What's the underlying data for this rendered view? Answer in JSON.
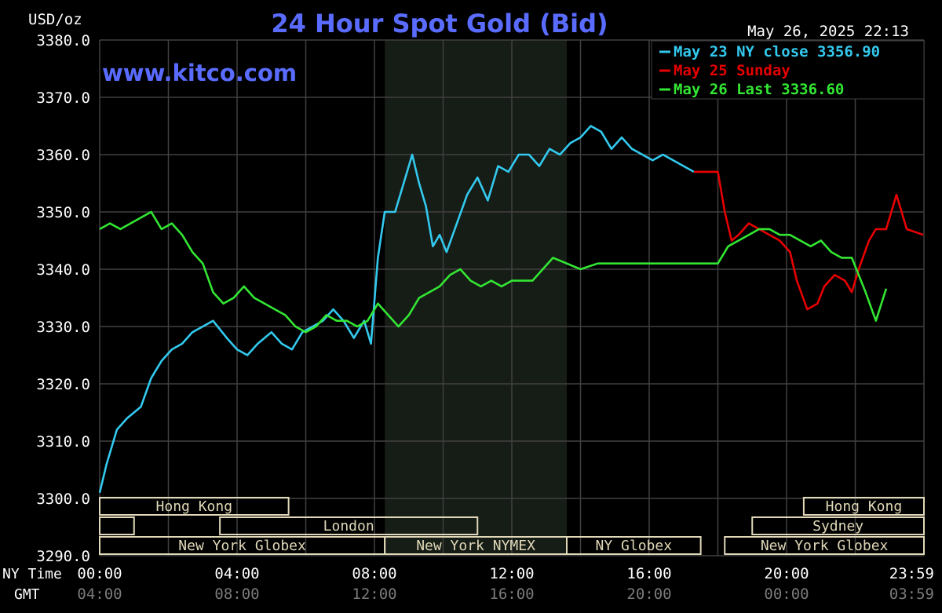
{
  "header": {
    "title": "24 Hour Spot Gold (Bid)",
    "unit_label": "USD/oz",
    "timestamp": "May 26, 2025 22:13",
    "watermark": "www.kitco.com"
  },
  "colors": {
    "background": "#000000",
    "grid": "#404040",
    "title": "#5a6cff",
    "text": "#ffffff",
    "axis_gray": "#7a7a7a",
    "market_shading": "#161c16",
    "session_fill": "#e0d8b8",
    "session_text": "#000000",
    "series_cyan": "#33c9ee",
    "series_red": "#e60000",
    "series_green": "#33e633"
  },
  "legend": {
    "placement": "top-right",
    "items": [
      {
        "label": "May 23 NY close 3356.90",
        "color": "#33c9ee"
      },
      {
        "label": "May 25 Sunday",
        "color": "#e60000"
      },
      {
        "label": "May 26 Last 3336.60",
        "color": "#33e633"
      }
    ]
  },
  "axes": {
    "x_row1_label": "NY Time",
    "x_row2_label": "GMT",
    "x_ny": [
      "00:00",
      "04:00",
      "08:00",
      "12:00",
      "16:00",
      "20:00",
      "23:59"
    ],
    "x_gmt": [
      "04:00",
      "08:00",
      "12:00",
      "16:00",
      "20:00",
      "00:00",
      "03:59"
    ],
    "y_ticks": [
      "3380.0",
      "3370.0",
      "3360.0",
      "3350.0",
      "3340.0",
      "3330.0",
      "3320.0",
      "3310.0",
      "3300.0",
      "3290.0"
    ]
  },
  "sessions": [
    {
      "label": "Hong Kong",
      "start": 0,
      "end": 5.5,
      "row": 0
    },
    {
      "label": "Hong Kong",
      "start": 20.5,
      "end": 24,
      "row": 0
    },
    {
      "label": "",
      "start": 0,
      "end": 1,
      "row": 1
    },
    {
      "label": "London",
      "start": 3.5,
      "end": 11,
      "row": 1
    },
    {
      "label": "Sydney",
      "start": 19,
      "end": 24,
      "row": 1
    },
    {
      "label": "New York Globex",
      "start": 0,
      "end": 8.3,
      "row": 2
    },
    {
      "label": "New York NYMEX",
      "start": 8.3,
      "end": 13.6,
      "row": 2
    },
    {
      "label": "NY Globex",
      "start": 13.6,
      "end": 17.5,
      "row": 2
    },
    {
      "label": "New York Globex",
      "start": 18.2,
      "end": 24,
      "row": 2
    }
  ],
  "chart_data": {
    "type": "line",
    "title": "24 Hour Spot Gold (Bid)",
    "ylabel": "USD/oz",
    "xlabel": "NY Time",
    "xlim": [
      0,
      24
    ],
    "ylim": [
      3290,
      3380
    ],
    "grid": true,
    "shaded_region": [
      8.3,
      13.6
    ],
    "series": [
      {
        "name": "May 23 NY close 3356.90",
        "color": "#33c9ee",
        "x": [
          0,
          0.2,
          0.5,
          0.8,
          1.2,
          1.5,
          1.8,
          2.1,
          2.4,
          2.7,
          3.0,
          3.3,
          3.7,
          4.0,
          4.3,
          4.6,
          5.0,
          5.3,
          5.6,
          5.9,
          6.2,
          6.5,
          6.8,
          7.1,
          7.4,
          7.7,
          7.9,
          8.1,
          8.3,
          8.6,
          8.9,
          9.1,
          9.3,
          9.5,
          9.7,
          9.9,
          10.1,
          10.4,
          10.7,
          11.0,
          11.3,
          11.6,
          11.9,
          12.2,
          12.5,
          12.8,
          13.1,
          13.4,
          13.7,
          14.0,
          14.3,
          14.6,
          14.9,
          15.2,
          15.5,
          15.8,
          16.1,
          16.4,
          16.7,
          17.0,
          17.3
        ],
        "y": [
          3301,
          3306,
          3312,
          3314,
          3316,
          3321,
          3324,
          3326,
          3327,
          3329,
          3330,
          3331,
          3328,
          3326,
          3325,
          3327,
          3329,
          3327,
          3326,
          3329,
          3330,
          3331,
          3333,
          3331,
          3328,
          3331,
          3327,
          3342,
          3350,
          3350,
          3356,
          3360,
          3355,
          3351,
          3344,
          3346,
          3343,
          3348,
          3353,
          3356,
          3352,
          3358,
          3357,
          3360,
          3360,
          3358,
          3361,
          3360,
          3362,
          3363,
          3365,
          3364,
          3361,
          3363,
          3361,
          3360,
          3359,
          3360,
          3359,
          3358,
          3357
        ]
      },
      {
        "name": "May 25 Sunday",
        "color": "#e60000",
        "x": [
          17.3,
          17.7,
          18.0,
          18.2,
          18.4,
          18.6,
          18.9,
          19.2,
          19.5,
          19.8,
          20.1,
          20.3,
          20.6,
          20.9,
          21.1,
          21.4,
          21.7,
          21.9,
          22.1,
          22.4,
          22.6,
          22.9,
          23.2,
          23.5,
          23.98
        ],
        "y": [
          3357,
          3357,
          3357,
          3350,
          3345,
          3346,
          3348,
          3347,
          3346,
          3345,
          3343,
          3338,
          3333,
          3334,
          3337,
          3339,
          3338,
          3336,
          3340,
          3345,
          3347,
          3347,
          3353,
          3347,
          3346
        ]
      },
      {
        "name": "May 26 Last 3336.60",
        "color": "#33e633",
        "x": [
          0,
          0.3,
          0.6,
          0.9,
          1.2,
          1.5,
          1.8,
          2.1,
          2.4,
          2.7,
          3.0,
          3.3,
          3.6,
          3.9,
          4.2,
          4.5,
          4.8,
          5.1,
          5.4,
          5.7,
          6.0,
          6.3,
          6.6,
          6.9,
          7.2,
          7.5,
          7.8,
          8.1,
          8.4,
          8.7,
          9.0,
          9.3,
          9.6,
          9.9,
          10.2,
          10.5,
          10.8,
          11.1,
          11.4,
          11.7,
          12.0,
          12.3,
          12.6,
          12.9,
          13.2,
          13.6,
          14.0,
          14.5,
          15.0,
          15.5,
          16.0,
          16.5,
          17.0,
          17.5,
          18.0,
          18.3,
          18.6,
          18.9,
          19.2,
          19.5,
          19.8,
          20.1,
          20.4,
          20.7,
          21.0,
          21.3,
          21.6,
          21.9,
          22.1,
          22.3,
          22.6,
          22.9
        ],
        "y": [
          3347,
          3348,
          3347,
          3348,
          3349,
          3350,
          3347,
          3348,
          3346,
          3343,
          3341,
          3336,
          3334,
          3335,
          3337,
          3335,
          3334,
          3333,
          3332,
          3330,
          3329,
          3330,
          3332,
          3331,
          3331,
          3330,
          3331,
          3334,
          3332,
          3330,
          3332,
          3335,
          3336,
          3337,
          3339,
          3340,
          3338,
          3337,
          3338,
          3337,
          3338,
          3338,
          3338,
          3340,
          3342,
          3341,
          3340,
          3341,
          3341,
          3341,
          3341,
          3341,
          3341,
          3341,
          3341,
          3344,
          3345,
          3346,
          3347,
          3347,
          3346,
          3346,
          3345,
          3344,
          3345,
          3343,
          3342,
          3342,
          3339,
          3336,
          3331,
          3336.6
        ]
      }
    ]
  }
}
